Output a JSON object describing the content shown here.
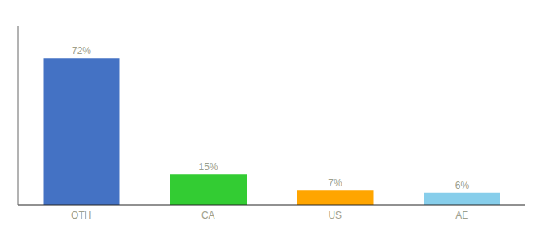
{
  "chart_data": {
    "type": "bar",
    "categories": [
      "OTH",
      "CA",
      "US",
      "AE"
    ],
    "values": [
      72,
      15,
      7,
      6
    ],
    "value_labels": [
      "72%",
      "15%",
      "7%",
      "6%"
    ],
    "colors": [
      "#4472C4",
      "#33CC33",
      "#FFA500",
      "#87CEEB"
    ],
    "ylim": [
      0,
      88
    ],
    "tick_labels": "x"
  }
}
